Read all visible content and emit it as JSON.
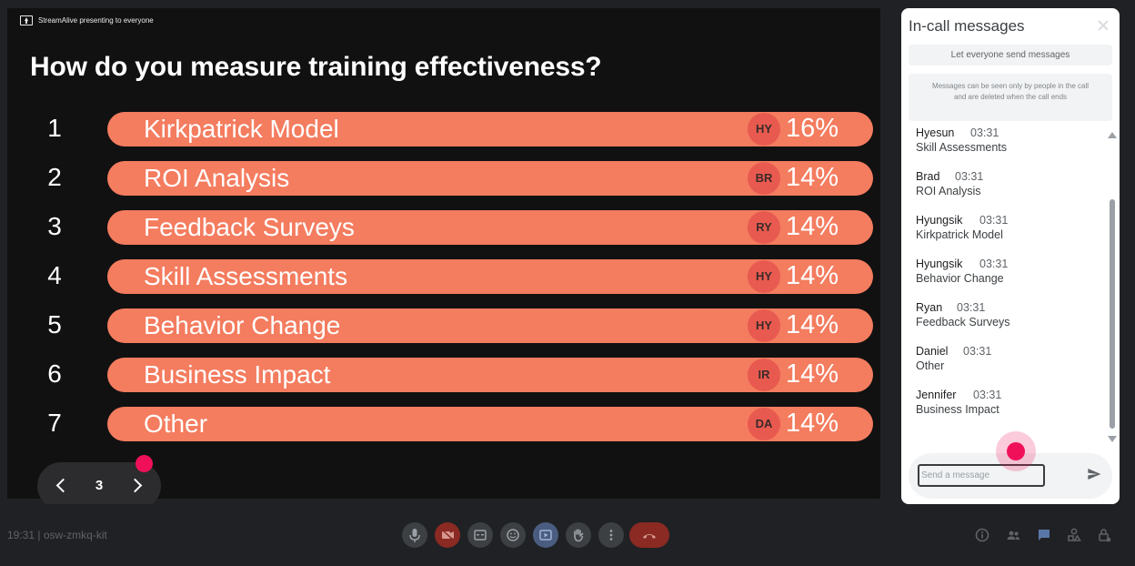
{
  "presentation": {
    "presenting_label": "StreamAlive presenting to everyone",
    "question": "How do you measure training effectiveness?",
    "options": [
      {
        "num": "1",
        "label": "Kirkpatrick Model",
        "avatar": "HY",
        "pct": "16%",
        "share": 0.16
      },
      {
        "num": "2",
        "label": "ROI Analysis",
        "avatar": "BR",
        "pct": "14%",
        "share": 0.14
      },
      {
        "num": "3",
        "label": "Feedback Surveys",
        "avatar": "RY",
        "pct": "14%",
        "share": 0.14
      },
      {
        "num": "4",
        "label": "Skill Assessments",
        "avatar": "HY",
        "pct": "14%",
        "share": 0.14
      },
      {
        "num": "5",
        "label": "Behavior Change",
        "avatar": "HY",
        "pct": "14%",
        "share": 0.14
      },
      {
        "num": "6",
        "label": "Business Impact",
        "avatar": "IR",
        "pct": "14%",
        "share": 0.14
      },
      {
        "num": "7",
        "label": "Other",
        "avatar": "DA",
        "pct": "14%",
        "share": 0.14
      }
    ],
    "slide_number": "3",
    "bar_color": "#f47c5f"
  },
  "chat": {
    "title": "In-call messages",
    "toggle_label": "Let everyone send messages",
    "info": "Messages can be seen only by people in the call and are deleted when the call ends",
    "messages": [
      {
        "name": "Hyesun",
        "time": "03:31",
        "text": "Skill Assessments"
      },
      {
        "name": "Brad",
        "time": "03:31",
        "text": "ROI Analysis"
      },
      {
        "name": "Hyungsik",
        "time": "03:31",
        "text": "Kirkpatrick Model"
      },
      {
        "name": "Hyungsik",
        "time": "03:31",
        "text": "Behavior Change"
      },
      {
        "name": "Ryan",
        "time": "03:31",
        "text": "Feedback Surveys"
      },
      {
        "name": "Daniel",
        "time": "03:31",
        "text": "Other"
      },
      {
        "name": "Jennifer",
        "time": "03:31",
        "text": "Business Impact"
      }
    ],
    "input_placeholder": "Send a message"
  },
  "toolbar": {
    "meeting_info": "19:31 | osw-zmkq-kit",
    "controls": [
      "microphone-icon",
      "camera-off-icon",
      "captions-icon",
      "emoji-icon",
      "present-icon",
      "raise-hand-icon",
      "more-options-icon"
    ],
    "right_controls": [
      "info-icon",
      "people-icon",
      "chat-icon",
      "activities-icon",
      "host-controls-icon"
    ]
  }
}
